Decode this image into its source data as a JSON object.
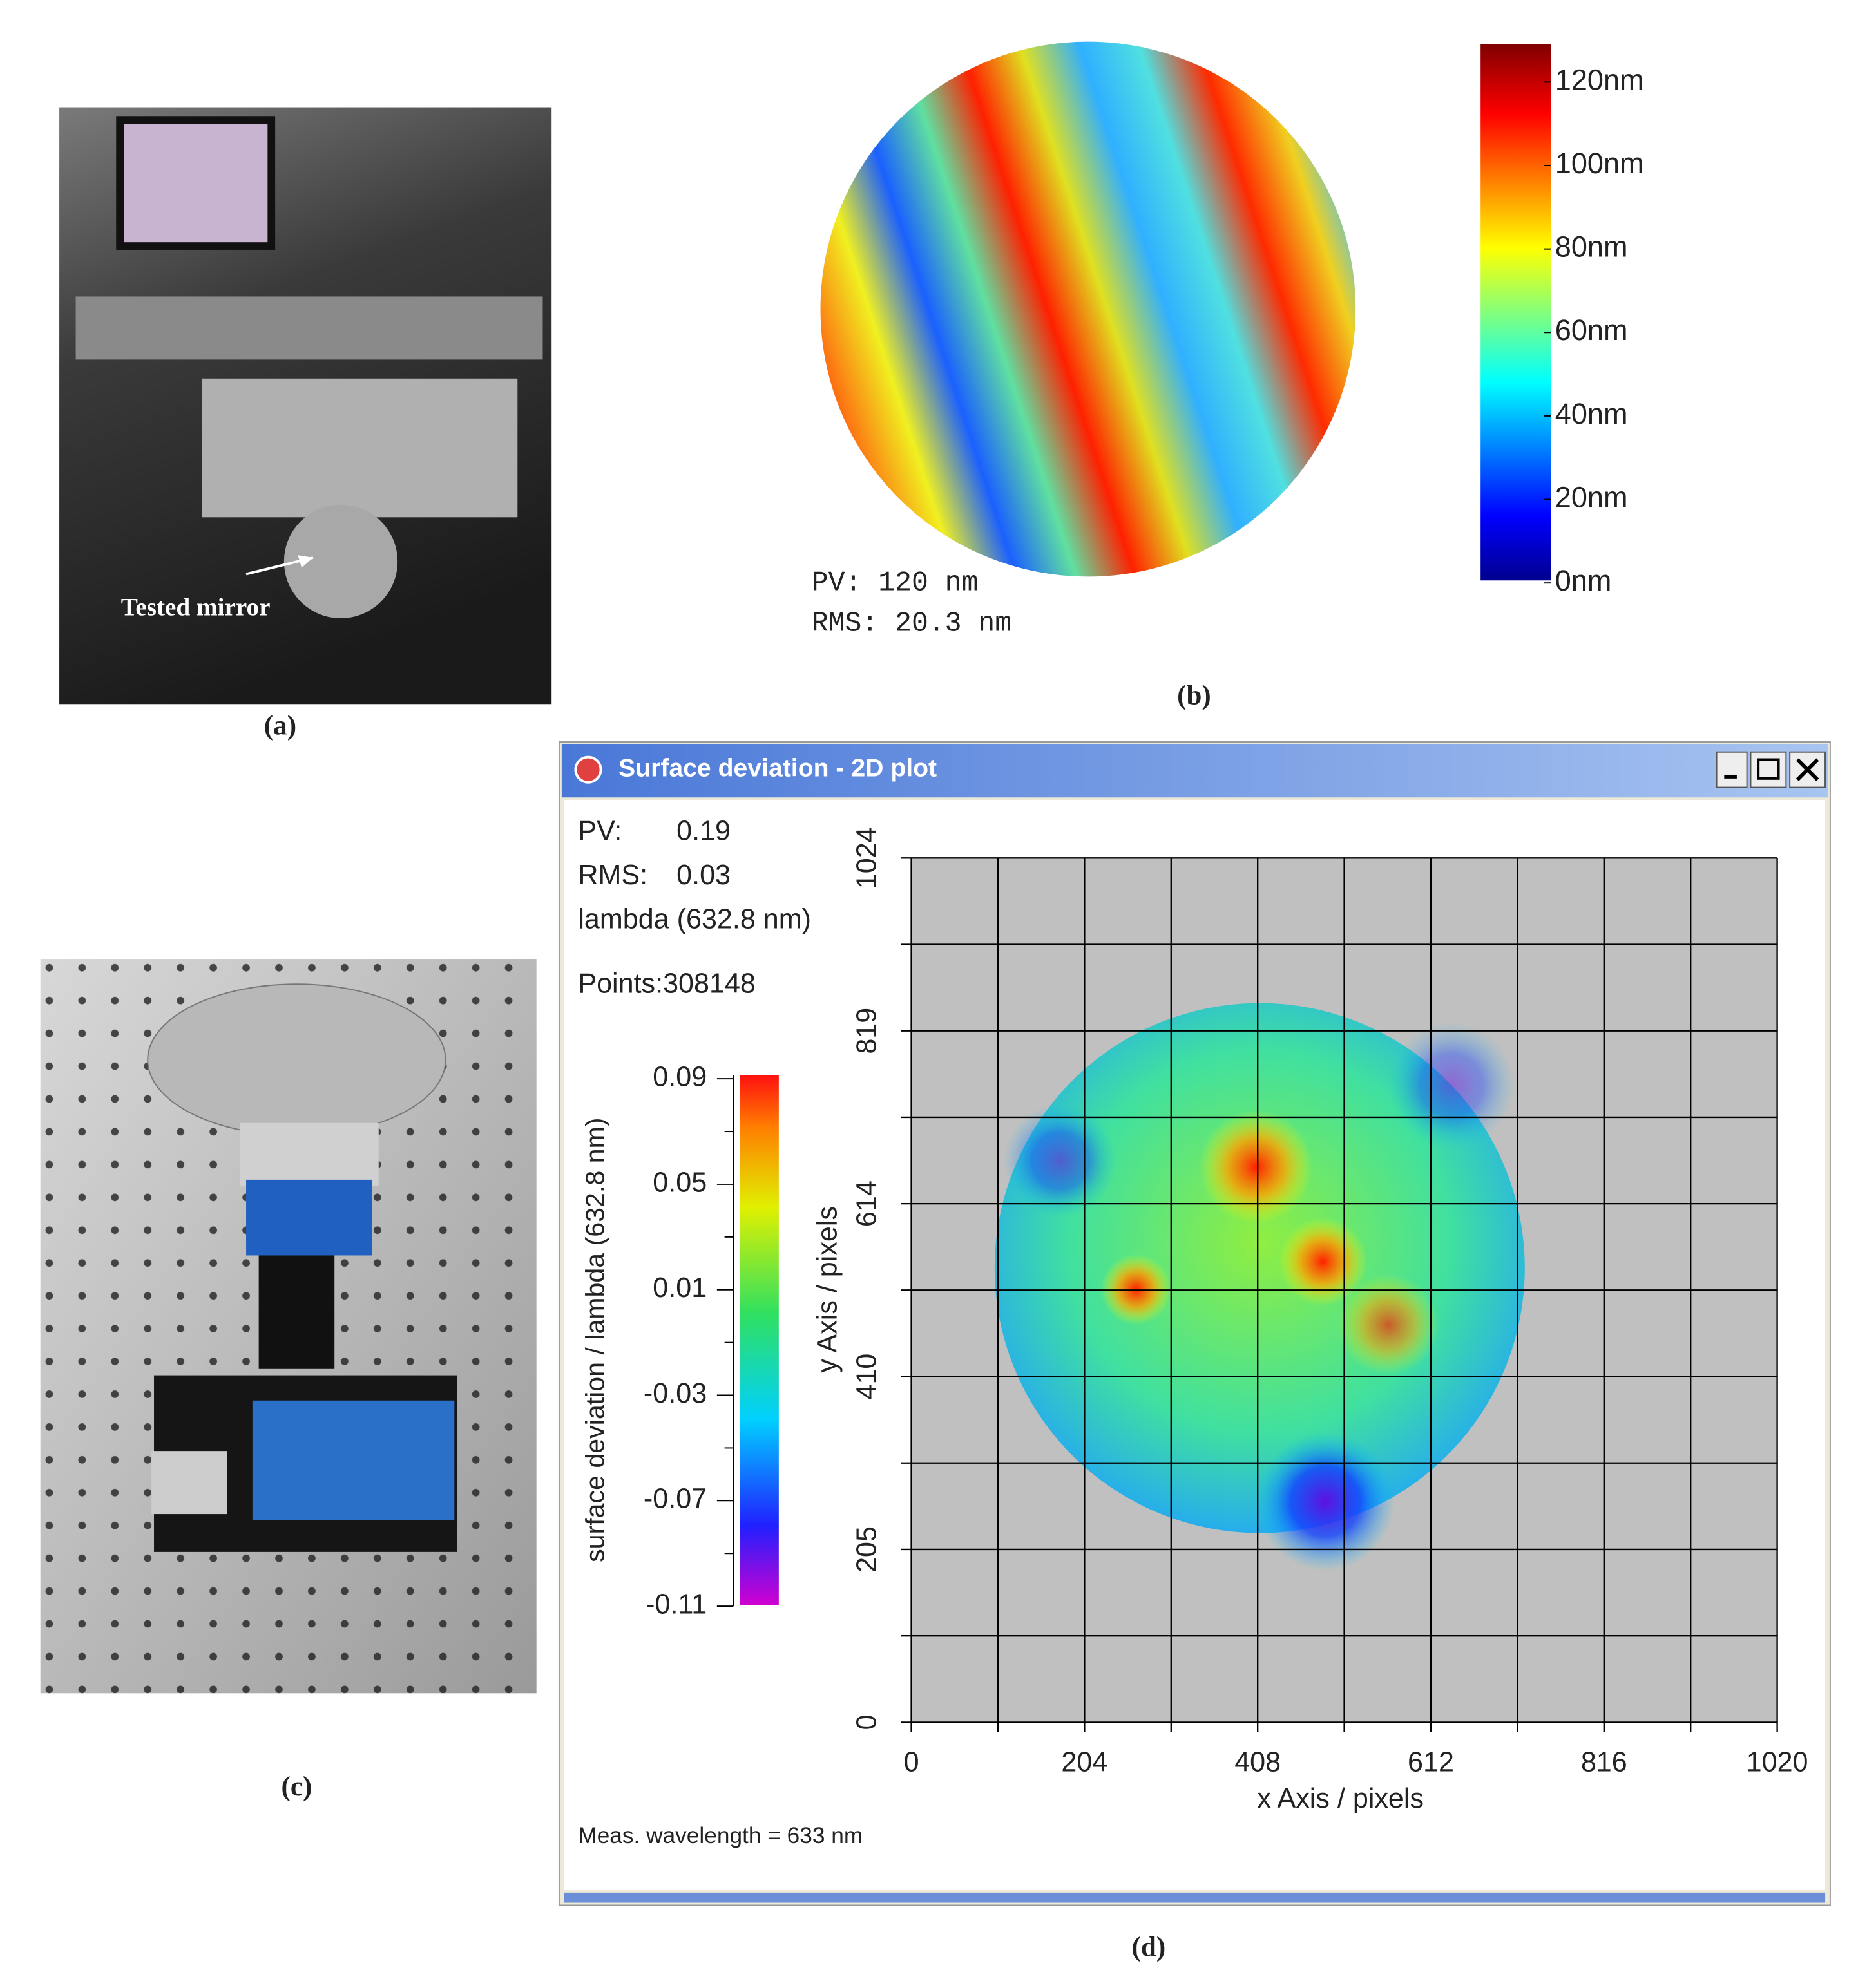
{
  "panels": {
    "a": {
      "label": "(a)",
      "annotation": "Tested mirror"
    },
    "b": {
      "label": "(b)",
      "pv": "PV: 120 nm",
      "rms": "RMS: 20.3 nm",
      "colorbar_ticks": [
        "120nm",
        "100nm",
        "80nm",
        "60nm",
        "40nm",
        "20nm",
        "0nm"
      ]
    },
    "c": {
      "label": "(c)"
    },
    "d": {
      "label": "(d)",
      "window_title": "Surface deviation - 2D plot",
      "pv_label": "PV:",
      "pv_value": "0.19",
      "rms_label": "RMS:",
      "rms_value": "0.03",
      "unit": "lambda (632.8 nm)",
      "points": "Points:308148",
      "colorbar_label": "surface deviation / lambda (632.8 nm)",
      "colorbar_ticks": [
        "0.09",
        "0.05",
        "0.01",
        "-0.03",
        "-0.07",
        "-0.11"
      ],
      "x_label": "x Axis / pixels",
      "y_label": "y Axis / pixels",
      "x_ticks": [
        "0",
        "204",
        "408",
        "612",
        "816",
        "1020"
      ],
      "y_ticks": [
        "0",
        "205",
        "410",
        "614",
        "819",
        "1024"
      ],
      "footer": "Meas. wavelength = 633 nm"
    }
  }
}
